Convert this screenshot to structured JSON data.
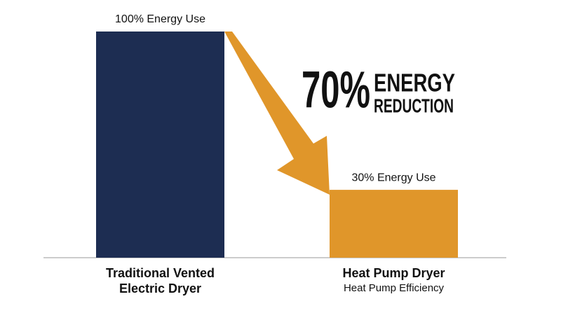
{
  "chart_data": {
    "type": "bar",
    "categories": [
      "Traditional Vented Electric Dryer",
      "Heat Pump Dryer"
    ],
    "category_subtitles": [
      null,
      "Heat Pump Efficiency"
    ],
    "values": [
      100,
      30
    ],
    "value_labels": [
      "100% Energy Use",
      "30% Energy Use"
    ],
    "colors": [
      "#1d2d52",
      "#e0962a"
    ],
    "annotation": [
      "70%",
      "ENERGY",
      "REDUCTION"
    ]
  }
}
